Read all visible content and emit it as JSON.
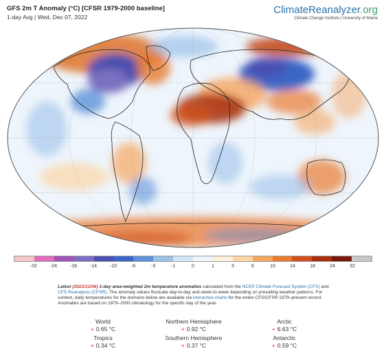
{
  "header": {
    "title": "GFS 2m T Anomaly (°C) [CFSR 1979-2000 baseline]",
    "subtitle": "1-day Avg | Wed, Dec 07, 2022"
  },
  "brand": {
    "name_part1": "ClimateReanalyzer",
    "name_part2": ".org",
    "sub": "Climate Change Institute | University of Maine"
  },
  "colorbar": {
    "tick_labels": [
      "-32",
      "-24",
      "-18",
      "-14",
      "-10",
      "-6",
      "-3",
      "-1",
      "0",
      "1",
      "3",
      "6",
      "10",
      "14",
      "18",
      "24",
      "32"
    ],
    "colors": [
      "#f5c6c9",
      "#e06dbd",
      "#a053b5",
      "#7c6fc1",
      "#4a4fb0",
      "#3a66c5",
      "#5d92d9",
      "#9dc2ea",
      "#d3e6f7",
      "#eef6fc",
      "#fdf0dd",
      "#fcd6a5",
      "#f7a660",
      "#ea7a30",
      "#cf4f1a",
      "#a8300e",
      "#7a180a",
      "#c8c8c8"
    ]
  },
  "notes": {
    "latest_label": "Latest",
    "date": "(2022/12/06)",
    "lead": "1-day area-weighted 2m temperature anomalies",
    "text1": "calculated from the",
    "link1": "NCEP Climate Forecast System (CFS)",
    "text2": "and",
    "link2": "CFS Reanalysis (CFSR)",
    "text3": ". The anomaly values fluctuate day-to-day and week-to-week depending on prevailing weather patterns. For context, daily temperatures for the domains below are available via",
    "link3": "interactive charts",
    "text4": "for the entire CFS/CFSR 1979–present record. Anomalies are based on 1979–2000 climatology for the specific day of the year."
  },
  "stats": [
    {
      "label": "World",
      "value": "0.65 °C"
    },
    {
      "label": "Northern Hemisphere",
      "value": "0.92 °C"
    },
    {
      "label": "Arctic",
      "value": "6.63 °C"
    },
    {
      "label": "Tropics",
      "value": "0.34 °C"
    },
    {
      "label": "Southern Hemisphere",
      "value": "0.37 °C"
    },
    {
      "label": "Antarctic",
      "value": "0.59 °C"
    }
  ],
  "stat_sign": "+"
}
